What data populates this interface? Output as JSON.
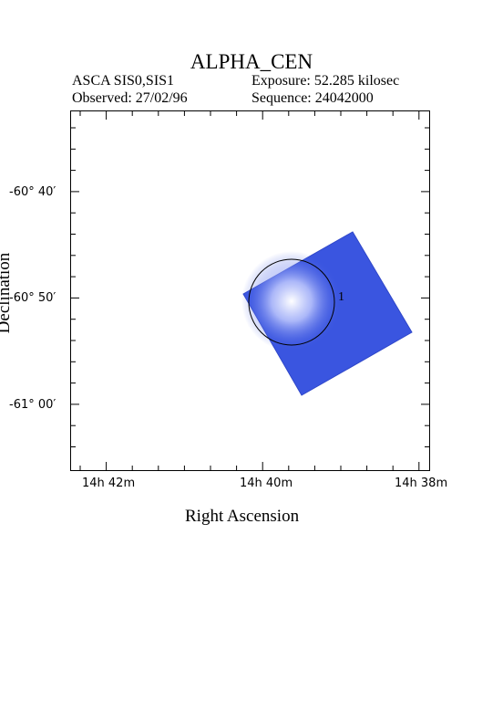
{
  "title": "ALPHA_CEN",
  "header": {
    "instrument": "ASCA SIS0,SIS1",
    "exposure": "Exposure: 52.285 kilosec",
    "observed": "Observed: 27/02/96",
    "sequence": "Sequence: 24042000"
  },
  "axes": {
    "xlabel": "Right Ascension",
    "ylabel": "Declination",
    "y_ticks": [
      "-60° 40′",
      "-60° 50′",
      "-61° 00′"
    ],
    "x_ticks": [
      "14h 42m",
      "14h 40m",
      "14h 38m"
    ]
  },
  "source": {
    "label": "1"
  },
  "colors": {
    "detector_fill": "#3a55e0",
    "source_glow": "#ffffff"
  }
}
